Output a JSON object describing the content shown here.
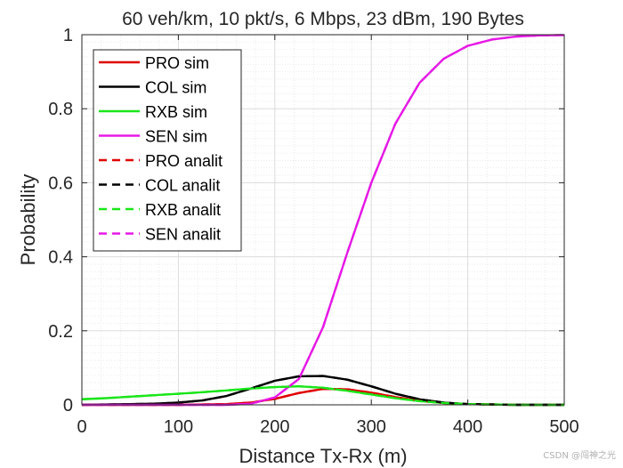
{
  "chart_data": {
    "type": "line",
    "title": "60 veh/km, 10 pkt/s, 6 Mbps, 23 dBm, 190 Bytes",
    "xlabel": "Distance Tx-Rx (m)",
    "ylabel": "Probability",
    "xlim": [
      0,
      500
    ],
    "ylim": [
      0,
      1
    ],
    "xticks": [
      0,
      100,
      200,
      300,
      400,
      500
    ],
    "yticks": [
      0,
      0.2,
      0.4,
      0.6,
      0.8,
      1
    ],
    "xtick_labels": [
      "0",
      "100",
      "200",
      "300",
      "400",
      "500"
    ],
    "ytick_labels": [
      "0",
      "0.2",
      "0.4",
      "0.6",
      "0.8",
      "1"
    ],
    "grid": true,
    "minor_grid": true,
    "legend_position": "top-left",
    "x": [
      0,
      25,
      50,
      75,
      100,
      125,
      150,
      175,
      200,
      225,
      250,
      275,
      300,
      325,
      350,
      375,
      400,
      425,
      450,
      475,
      500
    ],
    "series": [
      {
        "name": "PRO sim",
        "color": "#e00000",
        "style": "solid",
        "values": [
          0,
          0,
          0,
          0,
          0,
          0.001,
          0.002,
          0.006,
          0.016,
          0.032,
          0.043,
          0.042,
          0.033,
          0.021,
          0.011,
          0.005,
          0.002,
          0.001,
          0,
          0,
          0
        ]
      },
      {
        "name": "COL sim",
        "color": "#000000",
        "style": "solid",
        "values": [
          0,
          0.001,
          0.002,
          0.003,
          0.006,
          0.012,
          0.024,
          0.044,
          0.065,
          0.077,
          0.078,
          0.068,
          0.05,
          0.03,
          0.015,
          0.006,
          0.002,
          0.001,
          0,
          0,
          0
        ]
      },
      {
        "name": "RXB sim",
        "color": "#19e619",
        "style": "solid",
        "values": [
          0.015,
          0.018,
          0.022,
          0.026,
          0.03,
          0.034,
          0.039,
          0.044,
          0.048,
          0.05,
          0.046,
          0.038,
          0.028,
          0.018,
          0.01,
          0.005,
          0.002,
          0.001,
          0,
          0,
          0
        ]
      },
      {
        "name": "SEN sim",
        "color": "#e619e6",
        "style": "solid",
        "values": [
          0,
          0,
          0,
          0,
          0,
          0,
          0,
          0.003,
          0.02,
          0.07,
          0.21,
          0.41,
          0.6,
          0.76,
          0.87,
          0.935,
          0.97,
          0.987,
          0.995,
          0.998,
          0.999
        ]
      },
      {
        "name": "PRO analit",
        "color": "#e00000",
        "style": "dashed",
        "values": [
          0,
          0,
          0,
          0,
          0,
          0.001,
          0.002,
          0.006,
          0.016,
          0.032,
          0.043,
          0.042,
          0.033,
          0.021,
          0.011,
          0.005,
          0.002,
          0.001,
          0,
          0,
          0
        ]
      },
      {
        "name": "COL analit",
        "color": "#000000",
        "style": "dashed",
        "values": [
          0,
          0.001,
          0.002,
          0.003,
          0.006,
          0.012,
          0.024,
          0.044,
          0.065,
          0.077,
          0.078,
          0.068,
          0.05,
          0.03,
          0.015,
          0.006,
          0.002,
          0.001,
          0,
          0,
          0
        ]
      },
      {
        "name": "RXB analit",
        "color": "#19e619",
        "style": "dashed",
        "values": [
          0.015,
          0.018,
          0.022,
          0.026,
          0.03,
          0.034,
          0.039,
          0.044,
          0.048,
          0.05,
          0.046,
          0.038,
          0.028,
          0.018,
          0.01,
          0.005,
          0.002,
          0.001,
          0,
          0,
          0
        ]
      },
      {
        "name": "SEN analit",
        "color": "#e619e6",
        "style": "dashed",
        "values": [
          0,
          0,
          0,
          0,
          0,
          0,
          0,
          0.003,
          0.02,
          0.07,
          0.21,
          0.41,
          0.6,
          0.76,
          0.87,
          0.935,
          0.97,
          0.987,
          0.995,
          0.998,
          0.999
        ]
      }
    ]
  },
  "watermark": "CSDN @闯神之光"
}
